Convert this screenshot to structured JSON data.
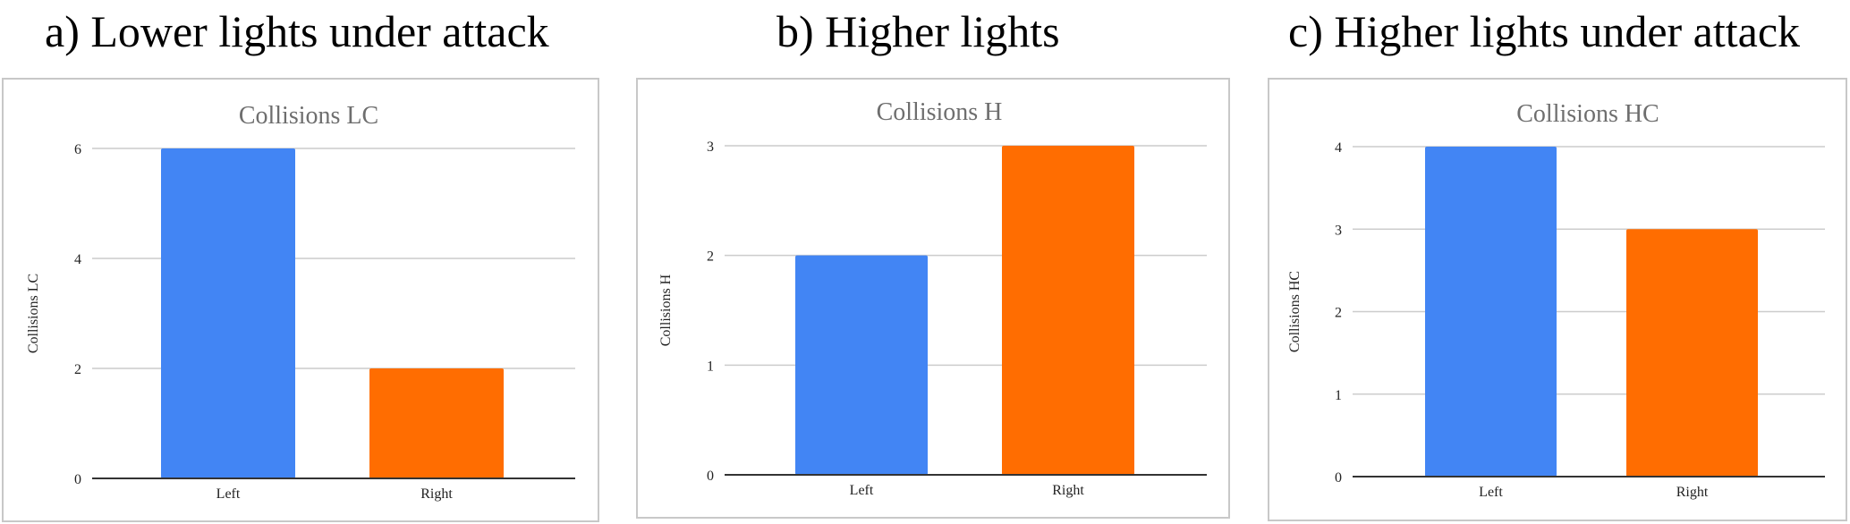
{
  "panels": [
    {
      "label": "a) Lower lights under attack"
    },
    {
      "label": "b) Higher lights"
    },
    {
      "label": "c) Higher lights under attack"
    }
  ],
  "colors": {
    "left": "#4285f4",
    "right": "#ff6d01",
    "grid": "#cccccc",
    "axis": "#333333"
  },
  "chart_data": [
    {
      "type": "bar",
      "title": "Collisions LC",
      "ylabel": "Collisions LC",
      "xlabel": "",
      "categories": [
        "Left",
        "Right"
      ],
      "values": [
        6,
        2
      ],
      "ylim": [
        0,
        6
      ],
      "yticks": [
        0,
        2,
        4,
        6
      ],
      "grid": true
    },
    {
      "type": "bar",
      "title": "Collisions H",
      "ylabel": "Collisions H",
      "xlabel": "",
      "categories": [
        "Left",
        "Right"
      ],
      "values": [
        2,
        3
      ],
      "ylim": [
        0,
        3
      ],
      "yticks": [
        0,
        1,
        2,
        3
      ],
      "grid": true
    },
    {
      "type": "bar",
      "title": "Collisions HC",
      "ylabel": "Collisions HC",
      "xlabel": "",
      "categories": [
        "Left",
        "Right"
      ],
      "values": [
        4,
        3
      ],
      "ylim": [
        0,
        4
      ],
      "yticks": [
        0,
        1,
        2,
        3,
        4
      ],
      "grid": true
    }
  ]
}
